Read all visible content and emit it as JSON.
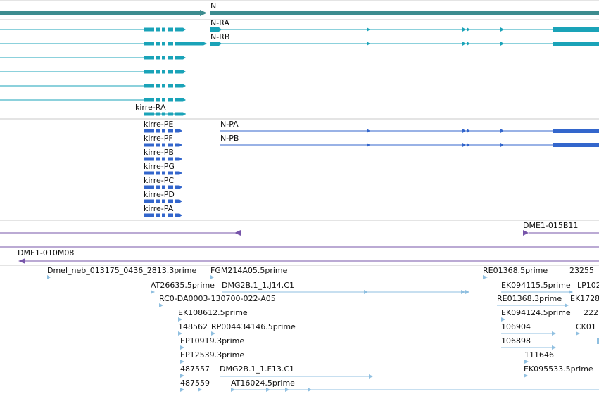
{
  "colors": {
    "gene": "#3d8c8f",
    "transcript": "#1aa3b8",
    "protein": "#3366cc",
    "clone": "#7755aa",
    "est": "#8fbfe0",
    "divider": "#c8c8c8"
  },
  "tracks": {
    "gene": {
      "label": "N"
    },
    "transcripts": [
      {
        "label": "N-RA"
      },
      {
        "label": "N-RB"
      },
      {
        "label": "kirre-RA"
      }
    ],
    "proteins": [
      {
        "label": "kirre-PE"
      },
      {
        "label": "kirre-PF"
      },
      {
        "label": "kirre-PB"
      },
      {
        "label": "kirre-PG"
      },
      {
        "label": "kirre-PC"
      },
      {
        "label": "kirre-PD"
      },
      {
        "label": "kirre-PA"
      },
      {
        "label": "N-PA"
      },
      {
        "label": "N-PB"
      }
    ],
    "clones": [
      {
        "label": "DME1-015B11"
      },
      {
        "label": "DME1-010M08"
      }
    ],
    "ests": [
      {
        "label": "Dmel_neb_013175_0436_2813.3prime"
      },
      {
        "label": "FGM214A05.5prime"
      },
      {
        "label": "RE01368.5prime"
      },
      {
        "label": "23255"
      },
      {
        "label": "AT26635.5prime"
      },
      {
        "label": "DMG2B.1_1.J14.C1"
      },
      {
        "label": "EK094115.5prime"
      },
      {
        "label": "LP102"
      },
      {
        "label": "RC0-DA0003-130700-022-A05"
      },
      {
        "label": "RE01368.3prime"
      },
      {
        "label": "EK1728"
      },
      {
        "label": "EK108612.5prime"
      },
      {
        "label": "EK094124.5prime"
      },
      {
        "label": "222"
      },
      {
        "label": "148562"
      },
      {
        "label": "RP004434146.5prime"
      },
      {
        "label": "106904"
      },
      {
        "label": "CK01"
      },
      {
        "label": "EP10919.3prime"
      },
      {
        "label": "106898"
      },
      {
        "label": "EP12539.3prime"
      },
      {
        "label": "111646"
      },
      {
        "label": "487557"
      },
      {
        "label": "DMG2B.1_1.F13.C1"
      },
      {
        "label": "EK095533.5prime"
      },
      {
        "label": "487559"
      },
      {
        "label": "AT16024.5prime"
      }
    ]
  }
}
